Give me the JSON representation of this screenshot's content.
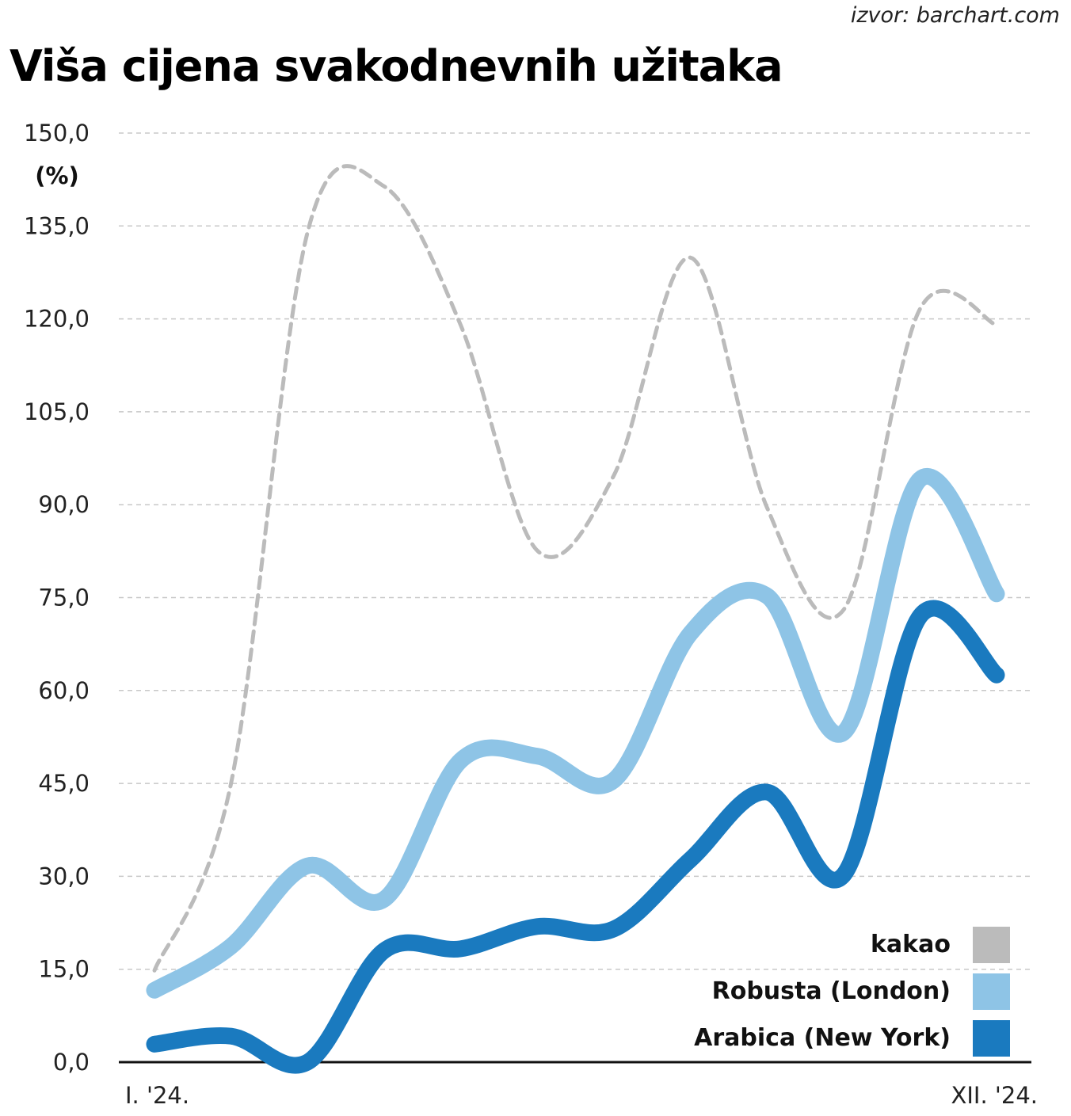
{
  "source": "izvor: barchart.com",
  "title": "Viša cijena svakodnevnih užitaka",
  "chart_data": {
    "type": "line",
    "title": "Viša cijena svakodnevnih užitaka",
    "ylabel": "(%)",
    "xlabel": "",
    "ylim": [
      0,
      150
    ],
    "yticks": [
      "0,0",
      "15,0",
      "30,0",
      "45,0",
      "60,0",
      "75,0",
      "90,0",
      "105,0",
      "120,0",
      "135,0",
      "150,0"
    ],
    "ytick_values": [
      0,
      15,
      30,
      45,
      60,
      75,
      90,
      105,
      120,
      135,
      150
    ],
    "x_tick_labels": [
      "I. '24.",
      "XII. '24."
    ],
    "x": [
      1,
      2,
      3,
      4,
      5,
      6,
      7,
      8,
      9,
      10,
      11,
      12
    ],
    "grid": true,
    "legend_position": "bottom-right",
    "series": [
      {
        "name": "kakao",
        "color": "#bbbbbb",
        "style": "dashed",
        "values": [
          14.8,
          45,
          134,
          141.4,
          119,
          82.6,
          94.7,
          129.9,
          89.6,
          73,
          121.6,
          119
        ]
      },
      {
        "name": "Robusta (London)",
        "color": "#8ec4e6",
        "style": "solid",
        "values": [
          11.6,
          18.7,
          31.7,
          26.3,
          48.7,
          49.4,
          45.5,
          69.2,
          75.3,
          53.2,
          94.1,
          75.6
        ]
      },
      {
        "name": "Arabica (New York)",
        "color": "#1a7abf",
        "style": "solid",
        "values": [
          2.9,
          4.2,
          0,
          18,
          18.3,
          21.9,
          21.5,
          32.7,
          43.6,
          30.2,
          72,
          62.5
        ]
      }
    ]
  }
}
